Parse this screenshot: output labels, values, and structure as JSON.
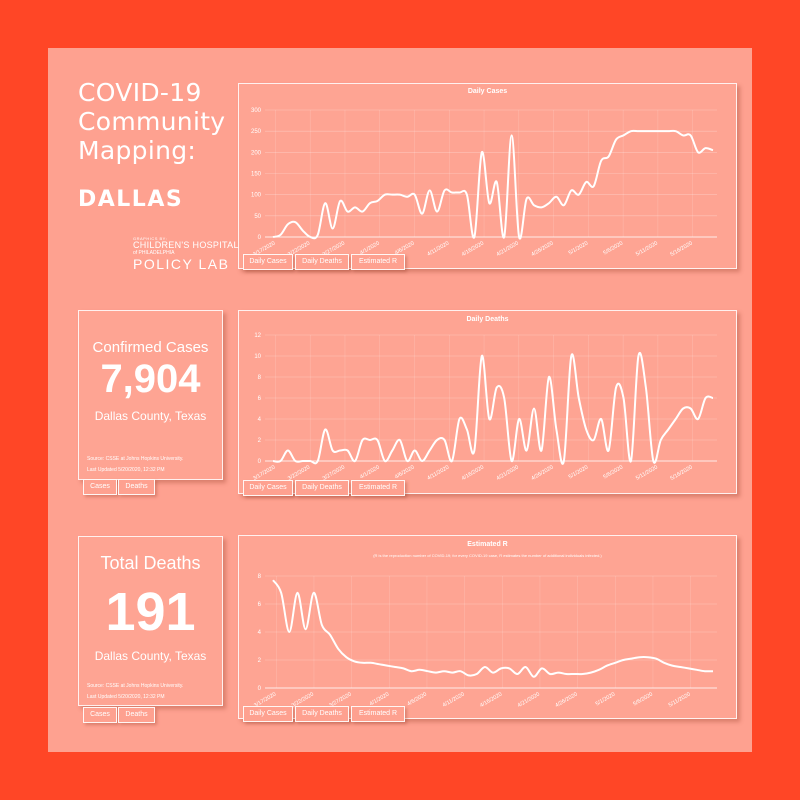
{
  "header": {
    "title_lines": [
      "COVID-19",
      "Community",
      "Mapping:"
    ],
    "city": "DALLAS"
  },
  "logo": {
    "line1": "GRAPHICS BY:",
    "line2": "CHILDREN'S HOSPITAL",
    "line3": "of PHILADELPHIA",
    "line4": "POLICY LAB"
  },
  "cases_card": {
    "title": "Confirmed Cases",
    "value": "7,904",
    "location": "Dallas County, Texas",
    "source": "Source: CSSE at Johns Hopkins University.",
    "updated": "Last Updated 5/20/2020, 12:32 PM",
    "tabs": [
      "Cases",
      "Deaths"
    ]
  },
  "deaths_card": {
    "title": "Total Deaths",
    "value": "191",
    "location": "Dallas County, Texas",
    "source": "Source: CSSE at Johns Hopkins University.",
    "updated": "Last Updated 5/20/2020, 12:32 PM",
    "tabs": [
      "Cases",
      "Deaths"
    ]
  },
  "chart_tabs": [
    "Daily Cases",
    "Daily Deaths",
    "Estimated R"
  ],
  "colors": {
    "background": "#ff4626",
    "board": "#fea190",
    "line": "#ffffff"
  },
  "chart_data": [
    {
      "type": "line",
      "title": "Daily Cases",
      "subtitle": "",
      "ylim": [
        0,
        300
      ],
      "yticks": [
        0,
        50,
        100,
        150,
        200,
        250,
        300
      ],
      "xticks": [
        "3/17/2020",
        "3/22/2020",
        "3/27/2020",
        "4/1/2020",
        "4/6/2020",
        "4/11/2020",
        "4/16/2020",
        "4/21/2020",
        "4/26/2020",
        "5/1/2020",
        "5/6/2020",
        "5/11/2020",
        "5/16/2020"
      ],
      "grid": true,
      "series": [
        {
          "values": [
            0,
            5,
            30,
            35,
            15,
            0,
            5,
            80,
            20,
            85,
            60,
            70,
            60,
            80,
            85,
            100,
            100,
            100,
            95,
            100,
            55,
            110,
            60,
            110,
            105,
            105,
            100,
            0,
            200,
            80,
            130,
            0,
            240,
            0,
            90,
            75,
            70,
            80,
            95,
            75,
            110,
            100,
            130,
            120,
            180,
            190,
            230,
            240,
            250,
            250,
            250,
            250,
            250,
            250,
            250,
            240,
            240,
            200,
            210,
            205
          ]
        }
      ]
    },
    {
      "type": "line",
      "title": "Daily Deaths",
      "subtitle": "",
      "ylim": [
        0,
        12
      ],
      "yticks": [
        0,
        2,
        4,
        6,
        8,
        10,
        12
      ],
      "xticks": [
        "3/17/2020",
        "3/22/2020",
        "3/27/2020",
        "4/1/2020",
        "4/6/2020",
        "4/11/2020",
        "4/16/2020",
        "4/21/2020",
        "4/26/2020",
        "5/1/2020",
        "5/6/2020",
        "5/11/2020",
        "5/16/2020"
      ],
      "grid": true,
      "series": [
        {
          "values": [
            0,
            0,
            1,
            0,
            0,
            0,
            0,
            3,
            1,
            1,
            1,
            0,
            2,
            2,
            2,
            0,
            1,
            2,
            0,
            1,
            0,
            1,
            2,
            2,
            0,
            4,
            3,
            1,
            10,
            4,
            7,
            6,
            0,
            4,
            1,
            5,
            1,
            8,
            3,
            0,
            10,
            6,
            3,
            2,
            4,
            1,
            7,
            6,
            0,
            10,
            7,
            0,
            2,
            3,
            4,
            5,
            5,
            4,
            6,
            6
          ]
        }
      ]
    },
    {
      "type": "line",
      "title": "Estimated R",
      "subtitle": "(R is the reproduction number of COVID-19; for every COVID-19 case, R estimates the number of additional individuals infected.)",
      "ylim": [
        0,
        8
      ],
      "yticks": [
        0,
        2,
        4,
        6,
        8
      ],
      "xticks": [
        "3/17/2020",
        "3/22/2020",
        "3/27/2020",
        "4/1/2020",
        "4/6/2020",
        "4/11/2020",
        "4/16/2020",
        "4/21/2020",
        "4/26/2020",
        "5/1/2020",
        "5/6/2020",
        "5/11/2020"
      ],
      "grid": true,
      "series": [
        {
          "values": [
            7.7,
            6.8,
            4.0,
            6.8,
            4.2,
            6.8,
            4.5,
            3.8,
            2.8,
            2.2,
            1.9,
            1.8,
            1.8,
            1.7,
            1.6,
            1.5,
            1.4,
            1.2,
            1.3,
            1.2,
            1.1,
            1.2,
            1.1,
            1.2,
            0.9,
            1.0,
            1.5,
            1.1,
            1.4,
            1.4,
            1.0,
            1.5,
            0.8,
            1.4,
            1.0,
            1.1,
            1.0,
            1.0,
            1.0,
            1.1,
            1.3,
            1.6,
            1.8,
            2.0,
            2.1,
            2.2,
            2.2,
            2.1,
            1.8,
            1.6,
            1.5,
            1.4,
            1.3,
            1.2,
            1.2
          ]
        }
      ]
    }
  ]
}
